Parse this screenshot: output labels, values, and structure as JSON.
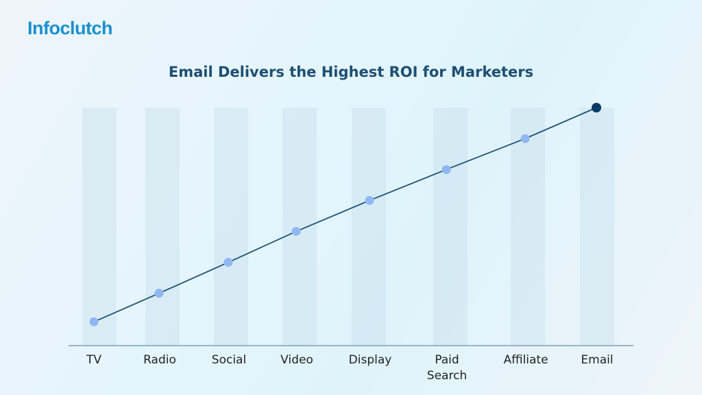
{
  "logo_text": "Infoclutch",
  "chart_data": {
    "type": "line",
    "title": "Email Delivers the Highest ROI for Marketers",
    "categories": [
      "TV",
      "Radio",
      "Social",
      "Video",
      "Display",
      "Paid Search",
      "Affiliate",
      "Email"
    ],
    "values": [
      10,
      22,
      35,
      48,
      61,
      74,
      87,
      100
    ],
    "ylim": [
      0,
      100
    ],
    "xlabel": "",
    "ylabel": "",
    "y_axis_labels_shown": false,
    "grid": false,
    "colors": {
      "line": "#1d5275",
      "point": "#8fb8f2",
      "highlight_point": "#0c3a63",
      "bands": "#c9dfec",
      "axis": "#7d9fb5"
    }
  }
}
